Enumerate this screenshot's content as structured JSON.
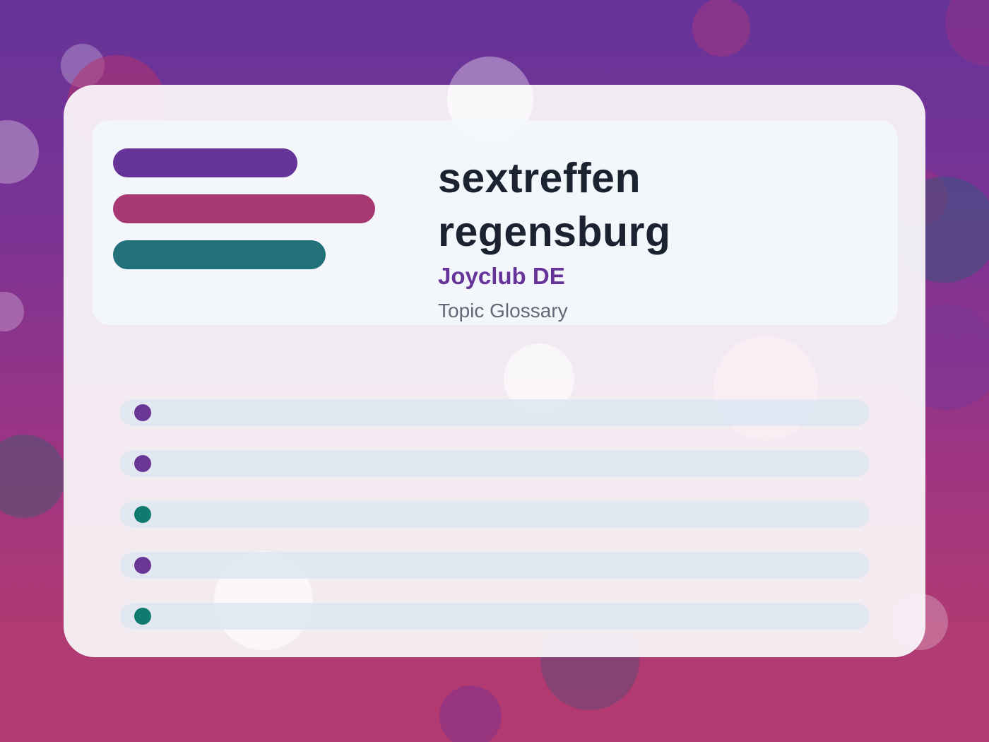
{
  "header": {
    "title_line1": "sextreffen",
    "title_line2": "regensburg",
    "brand": "Joyclub DE",
    "subtitle": "Topic Glossary"
  },
  "colors": {
    "purple": "#663399",
    "magenta": "#a83872",
    "teal": "#21707a",
    "dot_purple": "#6a3696",
    "dot_teal": "#0f7a70",
    "title": "#1b2230",
    "subtitle": "#626a78"
  },
  "decorative_bars": [
    "purple",
    "magenta",
    "teal"
  ],
  "list_rows": [
    {
      "marker": "purple"
    },
    {
      "marker": "purple"
    },
    {
      "marker": "teal"
    },
    {
      "marker": "purple"
    },
    {
      "marker": "teal"
    }
  ]
}
